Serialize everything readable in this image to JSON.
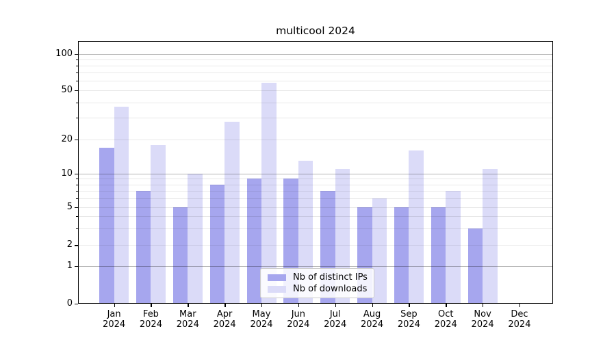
{
  "chart_data": {
    "type": "bar",
    "title": "multicool 2024",
    "categories": [
      "Jan 2024",
      "Feb 2024",
      "Mar 2024",
      "Apr 2024",
      "May 2024",
      "Jun 2024",
      "Jul 2024",
      "Aug 2024",
      "Sep 2024",
      "Oct 2024",
      "Nov 2024",
      "Dec 2024"
    ],
    "series": [
      {
        "name": "Nb of distinct IPs",
        "color": "#a6a6ee",
        "values": [
          17,
          7,
          5,
          8,
          9,
          9,
          7,
          5,
          5,
          5,
          3,
          0
        ]
      },
      {
        "name": "Nb of downloads",
        "color": "#dbdbf8",
        "values": [
          37,
          18,
          10,
          28,
          58,
          13,
          11,
          6,
          16,
          7,
          11,
          0
        ]
      }
    ],
    "y_ticks": [
      0,
      1,
      2,
      5,
      10,
      20,
      50,
      100
    ],
    "y_minor_ticks": [
      3,
      4,
      6,
      7,
      8,
      9,
      30,
      40,
      60,
      70,
      80,
      90
    ],
    "y_scale": "symlog",
    "ylim": [
      0,
      130
    ],
    "xlabel": "",
    "ylabel": "",
    "grid": true,
    "legend_position": "lower center inside plot",
    "colors": {
      "major_grid": "#b0b0b0",
      "minor_grid": "#e8e8e8",
      "axis": "#000000",
      "background": "#ffffff"
    }
  }
}
